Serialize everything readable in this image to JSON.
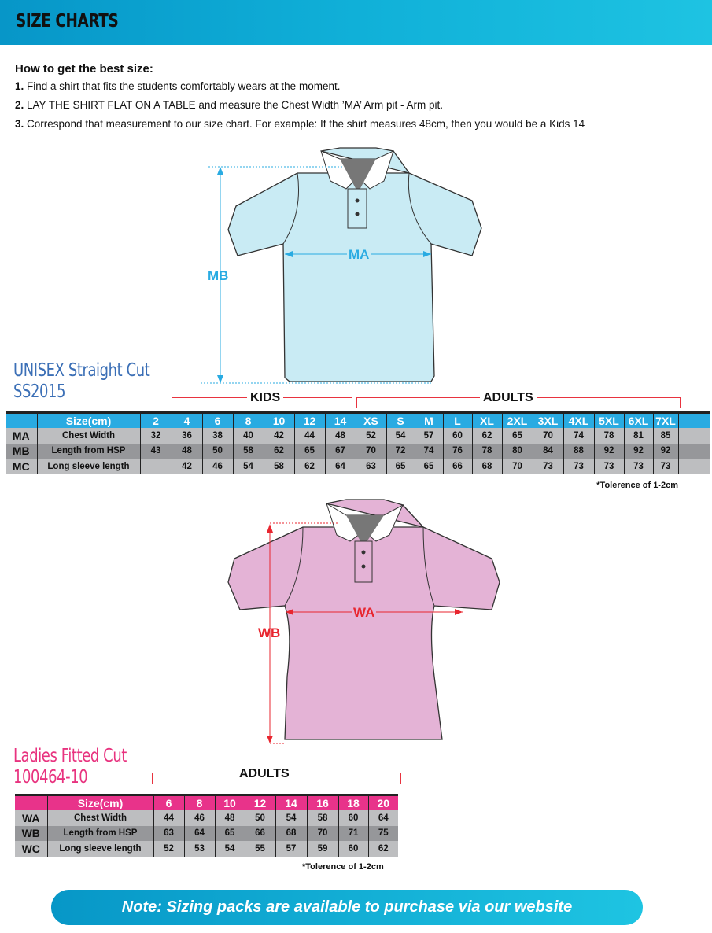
{
  "header": {
    "title": "SIZE CHARTS"
  },
  "instructions": {
    "heading": "How to get the best size:",
    "steps": [
      {
        "num": "1.",
        "text": "Find a shirt that fits the students comfortably wears at the moment."
      },
      {
        "num": "2.",
        "text": "LAY THE SHIRT FLAT ON A TABLE and measure the Chest Width ’MA’ Arm pit - Arm pit."
      },
      {
        "num": "3.",
        "text": "Correspond that measurement to our size chart. For example: If the shirt measures 48cm, then you would be a Kids 14"
      }
    ]
  },
  "unisex": {
    "title": "UNISEX Straight Cut",
    "code": "SS2015",
    "accent": "#29abe2",
    "title_color": "#3b6fb6",
    "shirt_color": "#c9ebf4",
    "width_label": "MA",
    "length_label": "MB",
    "groups": {
      "kids": "KIDS",
      "adults": "ADULTS"
    },
    "table": {
      "header": [
        "",
        "Size(cm)",
        "2",
        "4",
        "6",
        "8",
        "10",
        "12",
        "14",
        "XS",
        "S",
        "M",
        "L",
        "XL",
        "2XL",
        "3XL",
        "4XL",
        "5XL",
        "6XL",
        "7XL",
        ""
      ],
      "rows": [
        [
          "MA",
          "Chest Width",
          "32",
          "36",
          "38",
          "40",
          "42",
          "44",
          "48",
          "52",
          "54",
          "57",
          "60",
          "62",
          "65",
          "70",
          "74",
          "78",
          "81",
          "85",
          ""
        ],
        [
          "MB",
          "Length from HSP",
          "43",
          "48",
          "50",
          "58",
          "62",
          "65",
          "67",
          "70",
          "72",
          "74",
          "76",
          "78",
          "80",
          "84",
          "88",
          "92",
          "92",
          "92",
          ""
        ],
        [
          "MC",
          "Long sleeve length",
          "",
          "42",
          "46",
          "54",
          "58",
          "62",
          "64",
          "63",
          "65",
          "65",
          "66",
          "68",
          "70",
          "73",
          "73",
          "73",
          "73",
          "73",
          ""
        ]
      ]
    },
    "tolerance": "*Tolerence of 1-2cm"
  },
  "ladies": {
    "title": "Ladies Fitted Cut",
    "code": "100464-10",
    "accent": "#e8262f",
    "title_color": "#e8337f",
    "shirt_color": "#e4b3d6",
    "width_label": "WA",
    "length_label": "WB",
    "groups": {
      "adults": "ADULTS"
    },
    "table": {
      "header": [
        "",
        "Size(cm)",
        "6",
        "8",
        "10",
        "12",
        "14",
        "16",
        "18",
        "20"
      ],
      "rows": [
        [
          "WA",
          "Chest Width",
          "44",
          "46",
          "48",
          "50",
          "54",
          "58",
          "60",
          "64"
        ],
        [
          "WB",
          "Length from HSP",
          "63",
          "64",
          "65",
          "66",
          "68",
          "70",
          "71",
          "75"
        ],
        [
          "WC",
          "Long sleeve length",
          "52",
          "53",
          "54",
          "55",
          "57",
          "59",
          "60",
          "62"
        ]
      ]
    },
    "tolerance": "*Tolerence of 1-2cm"
  },
  "note": "Note: Sizing packs are available to purchase via our website"
}
